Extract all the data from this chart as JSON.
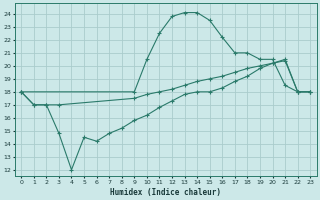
{
  "xlabel": "Humidex (Indice chaleur)",
  "bg_color": "#cce8e8",
  "grid_color": "#aacccc",
  "line_color": "#2a7a6a",
  "ylim": [
    11.5,
    24.8
  ],
  "xlim": [
    -0.5,
    23.5
  ],
  "yticks": [
    12,
    13,
    14,
    15,
    16,
    17,
    18,
    19,
    20,
    21,
    22,
    23,
    24
  ],
  "xticks": [
    0,
    1,
    2,
    3,
    4,
    5,
    6,
    7,
    8,
    9,
    10,
    11,
    12,
    13,
    14,
    15,
    16,
    17,
    18,
    19,
    20,
    21,
    22,
    23
  ],
  "line1_x": [
    0,
    1,
    2,
    3,
    9,
    10,
    11,
    12,
    13,
    14,
    15,
    16,
    17,
    18,
    19,
    20,
    21,
    22,
    23
  ],
  "line1_y": [
    18,
    17,
    17,
    17,
    17.5,
    17.8,
    18.0,
    18.2,
    18.5,
    18.8,
    19.0,
    19.2,
    19.5,
    19.8,
    20.0,
    20.2,
    20.4,
    18.0,
    18.0
  ],
  "line2_x": [
    0,
    9,
    10,
    11,
    12,
    13,
    14,
    15,
    16,
    17,
    18,
    19,
    20,
    21,
    22,
    23
  ],
  "line2_y": [
    18,
    18,
    20.5,
    22.5,
    23.8,
    24.1,
    24.1,
    23.5,
    22.2,
    21.0,
    21.0,
    20.5,
    20.5,
    18.5,
    18.0,
    18.0
  ],
  "line3_x": [
    0,
    1,
    2,
    3,
    4,
    5,
    6,
    7,
    8,
    9,
    10,
    11,
    12,
    13,
    14,
    15,
    16,
    17,
    18,
    19,
    20,
    21,
    22,
    23
  ],
  "line3_y": [
    18,
    17,
    17,
    14.8,
    12,
    14.5,
    14.2,
    14.8,
    15.2,
    15.8,
    16.2,
    16.8,
    17.3,
    17.8,
    18.0,
    18.0,
    18.3,
    18.8,
    19.2,
    19.8,
    20.2,
    20.5,
    18.0,
    18.0
  ]
}
